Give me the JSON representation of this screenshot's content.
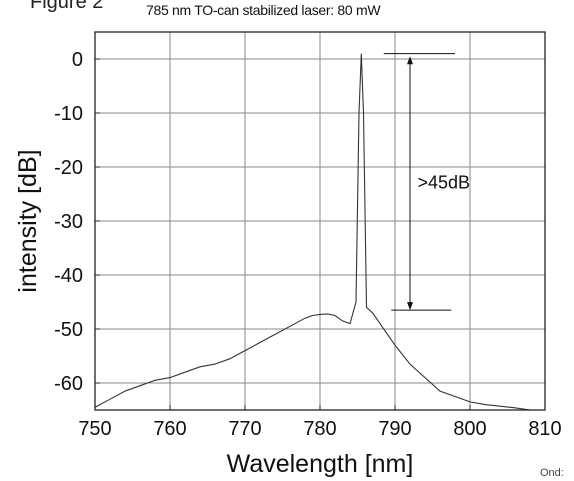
{
  "figure_label": "Figure 2",
  "corner_note": "Ond:",
  "chart_data": {
    "type": "line",
    "title": "785 nm TO-can stabilized laser: 80 mW",
    "xlabel": "Wavelength [nm]",
    "ylabel": "intensity [dB]",
    "xlim": [
      750,
      810
    ],
    "ylim": [
      -65,
      5
    ],
    "xticks": [
      750,
      760,
      770,
      780,
      790,
      800,
      810
    ],
    "yticks": [
      0,
      -10,
      -20,
      -30,
      -40,
      -50,
      -60
    ],
    "xtick_labels": [
      "750",
      "760",
      "770",
      "780",
      "790",
      "800",
      "810"
    ],
    "ytick_labels": [
      "0",
      "-10",
      "-20",
      "-30",
      "-40",
      "-50",
      "-60"
    ],
    "grid": true,
    "series": [
      {
        "color": "#333333",
        "x": [
          750,
          752,
          754,
          756,
          758,
          760,
          762,
          764,
          766,
          768,
          770,
          772,
          774,
          776,
          778,
          779,
          780,
          781,
          782,
          783,
          784,
          784.8,
          785.2,
          785.5,
          785.8,
          786.2,
          787,
          788,
          789,
          790,
          792,
          794,
          796,
          798,
          800,
          802,
          804,
          806,
          808
        ],
        "y": [
          -64.5,
          -63,
          -61.5,
          -60.5,
          -59.5,
          -59,
          -58,
          -57,
          -56.5,
          -55.5,
          -54,
          -52.5,
          -51,
          -49.5,
          -48,
          -47.5,
          -47.3,
          -47.2,
          -47.5,
          -48.5,
          -49,
          -45,
          -10,
          1,
          -10,
          -46,
          -47,
          -49,
          -51,
          -53,
          -56.5,
          -59,
          -61.5,
          -62.5,
          -63.5,
          -64,
          -64.3,
          -64.6,
          -65
        ]
      }
    ],
    "annotations": [
      {
        "text": ">45dB",
        "x": 793,
        "y": -24
      }
    ],
    "arrow": {
      "x": 792,
      "y_top": 0.5,
      "y_bottom": -46.5
    },
    "level_lines": [
      {
        "x1": 788.5,
        "x2": 798,
        "y": 1
      },
      {
        "x1": 789.5,
        "x2": 797.5,
        "y": -46.5
      }
    ]
  }
}
